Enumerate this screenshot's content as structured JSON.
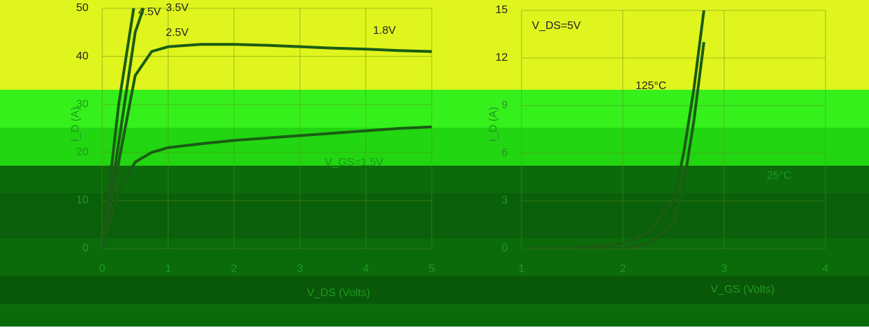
{
  "chart_data": [
    {
      "type": "line",
      "x_label": "V_DS (Volts)",
      "y_label": "I_D (A)",
      "x": [
        0,
        0.25,
        0.5,
        0.75,
        1,
        1.5,
        2,
        2.5,
        3,
        3.5,
        4,
        4.5,
        5
      ],
      "series": [
        {
          "name": "4.5V",
          "color": "#1a5c14",
          "values": [
            0,
            30,
            52,
            null,
            null,
            null,
            null,
            null,
            null,
            null,
            null,
            null,
            null
          ]
        },
        {
          "name": "3.5V",
          "color": "#1a5c14",
          "values": [
            0,
            22,
            45,
            55,
            null,
            null,
            null,
            null,
            null,
            null,
            null,
            null,
            null
          ]
        },
        {
          "name": "2.5V",
          "color": "#1a5c14",
          "values": [
            0,
            18,
            36,
            41,
            42,
            42.5,
            42.5,
            42.3,
            42,
            41.7,
            41.5,
            41.2,
            41
          ]
        },
        {
          "name": "V_GS=1.5V",
          "color": "#1a5c14",
          "values": [
            0,
            12,
            18,
            20,
            21,
            21.8,
            22.5,
            23,
            23.5,
            24,
            24.5,
            25,
            25.3
          ]
        }
      ],
      "annotations": [
        "1.8V"
      ],
      "xlim": [
        0,
        5
      ],
      "xticks": [
        0,
        1,
        2,
        3,
        4,
        5
      ],
      "ylim": [
        0,
        50
      ],
      "yticks": [
        0,
        10,
        20,
        30,
        40,
        50
      ],
      "grid": true
    },
    {
      "type": "line",
      "x_label": "V_GS (Volts)",
      "y_label": "I_D (A)",
      "x": [
        1,
        1.5,
        2,
        2.25,
        2.5,
        2.6,
        2.7,
        2.8,
        3
      ],
      "series": [
        {
          "name": "125°C",
          "color": "#1a5c14",
          "values": [
            0,
            0,
            0.3,
            1,
            3,
            6,
            10,
            15,
            null
          ]
        },
        {
          "name": "25°C",
          "color": "#1a5c14",
          "values": [
            0,
            0,
            0,
            0.3,
            1.5,
            4,
            8,
            13,
            null
          ]
        }
      ],
      "annotations": [
        "V_DS=5V"
      ],
      "xlim": [
        1,
        4
      ],
      "xticks": [
        1,
        2,
        3,
        4
      ],
      "ylim": [
        0,
        15
      ],
      "yticks": [
        0,
        3,
        6,
        9,
        12,
        15
      ],
      "grid": true
    }
  ]
}
